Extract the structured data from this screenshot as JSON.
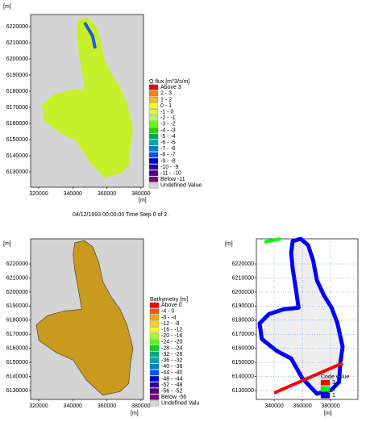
{
  "chart_data": [
    {
      "type": "map",
      "y_label": "[m]",
      "x_label": "[m]",
      "caption": "04/12/1993 00:00:00  Time Step 0 of 2.",
      "xlim": [
        315300,
        381500
      ],
      "ylim": [
        6120500,
        6227500
      ],
      "xticks": [
        320000,
        340000,
        360000,
        380000
      ],
      "yticks": [
        6130000,
        6140000,
        6150000,
        6160000,
        6170000,
        6180000,
        6190000,
        6200000,
        6210000,
        6220000
      ],
      "grid": false,
      "legend_title": "Q flux [m^3/s/m]",
      "legend": [
        {
          "label": "Above 3",
          "color": "#ff0000"
        },
        {
          "label": "2 - 3",
          "color": "#ff7f00"
        },
        {
          "label": "1 - 2",
          "color": "#ffbf00"
        },
        {
          "label": "0 - 1",
          "color": "#ffff00"
        },
        {
          "label": "-1 - 0",
          "color": "#d4ff2a"
        },
        {
          "label": "-2 - -1",
          "color": "#aaff55"
        },
        {
          "label": "-3 - -2",
          "color": "#55ff00"
        },
        {
          "label": "-4 - -3",
          "color": "#2ad400"
        },
        {
          "label": "-5 - -4",
          "color": "#00aa55"
        },
        {
          "label": "-6 - -5",
          "color": "#00aaaa"
        },
        {
          "label": "-7 - -6",
          "color": "#0080d4"
        },
        {
          "label": "-8 - -7",
          "color": "#0055ff"
        },
        {
          "label": "-9 - -8",
          "color": "#0000d4"
        },
        {
          "label": "-10 - -9",
          "color": "#2a00aa"
        },
        {
          "label": "-11 - -10",
          "color": "#550080"
        },
        {
          "label": "Below -11",
          "color": "#800080"
        },
        {
          "label": "Undefined Value",
          "color": "#d4d4d4"
        }
      ]
    },
    {
      "type": "map",
      "y_label": "[m]",
      "x_label": "[m]",
      "xlim": [
        315300,
        381500
      ],
      "ylim": [
        6123700,
        6237800
      ],
      "xticks": [
        320000,
        340000,
        360000,
        380000
      ],
      "yticks": [
        6130000,
        6140000,
        6150000,
        6160000,
        6170000,
        6180000,
        6190000,
        6200000,
        6210000,
        6220000
      ],
      "grid": false,
      "legend_title": "Bathymetry [m]",
      "legend": [
        {
          "label": "Above 0",
          "color": "#ff0000"
        },
        {
          "label": "-4 - 0",
          "color": "#ff5500"
        },
        {
          "label": "-8 - -4",
          "color": "#ffaa00"
        },
        {
          "label": "-12 - -8",
          "color": "#ffd400"
        },
        {
          "label": "-16 - -12",
          "color": "#ffff00"
        },
        {
          "label": "-20 - -16",
          "color": "#aaff2a"
        },
        {
          "label": "-24 - -20",
          "color": "#55ff00"
        },
        {
          "label": "-28 - -24",
          "color": "#00d42a"
        },
        {
          "label": "-32 - -28",
          "color": "#00aa80"
        },
        {
          "label": "-36 - -32",
          "color": "#00aaaa"
        },
        {
          "label": "-40 - -36",
          "color": "#0080d4"
        },
        {
          "label": "-44 - -40",
          "color": "#0055ff"
        },
        {
          "label": "-48 - -44",
          "color": "#0000d4"
        },
        {
          "label": "-52 - -48",
          "color": "#2a00aa"
        },
        {
          "label": "-56 - -52",
          "color": "#550080"
        },
        {
          "label": "Below -56",
          "color": "#800080"
        },
        {
          "label": "Undefined Valu",
          "color": "#d4d4d4"
        }
      ]
    },
    {
      "type": "mesh",
      "y_label": "[m]",
      "x_label": "[m]",
      "xlim": [
        327400,
        399400
      ],
      "ylim": [
        6123700,
        6237800
      ],
      "xticks": [
        340000,
        360000,
        380000
      ],
      "yticks": [
        6130000,
        6140000,
        6150000,
        6160000,
        6170000,
        6180000,
        6190000,
        6200000,
        6210000,
        6220000
      ],
      "grid": true,
      "legend_title": "Code value",
      "legend": [
        {
          "label": "3",
          "color": "#ff0000"
        },
        {
          "label": "2",
          "color": "#00ff00"
        },
        {
          "label": "1",
          "color": "#0000ff"
        }
      ]
    }
  ]
}
